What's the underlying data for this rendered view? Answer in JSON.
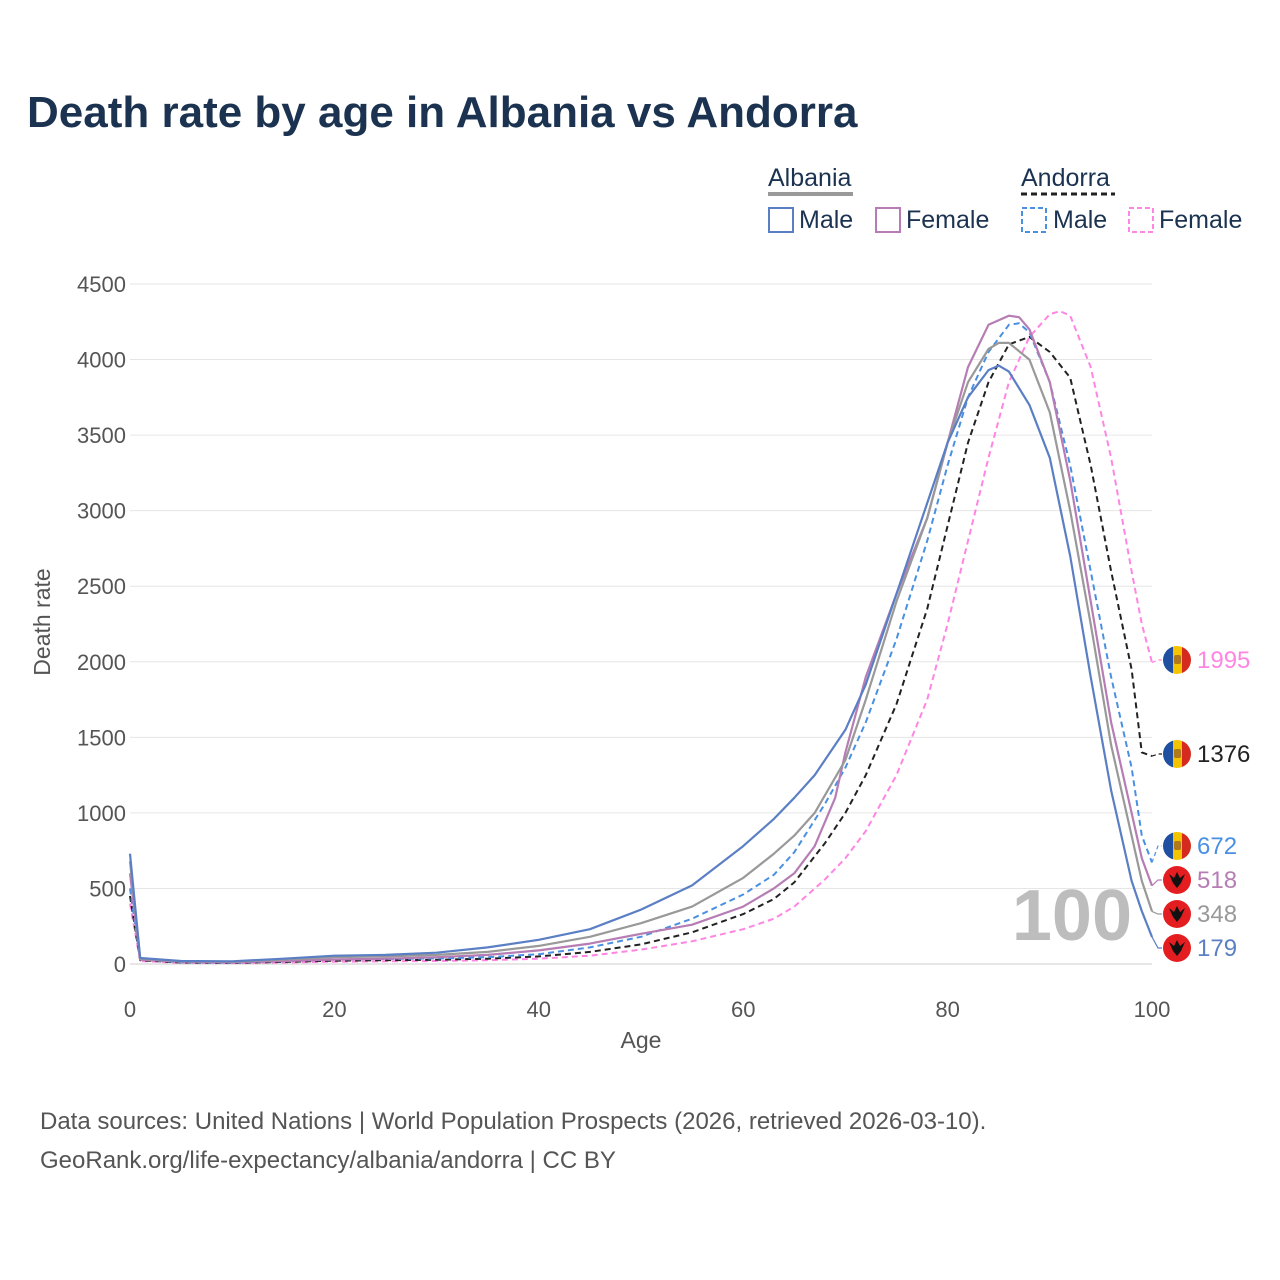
{
  "title": "Death rate by age in Albania vs Andorra",
  "source_line1": "Data sources: United Nations | World Population Prospects (2026, retrieved 2026-03-10).",
  "source_line2": "GeoRank.org/life-expectancy/albania/andorra | CC BY",
  "watermark": "100",
  "colors": {
    "albania_male": "#5b7fc4",
    "albania_female": "#b67db5",
    "albania_total": "#999999",
    "andorra_male": "#4a90e2",
    "andorra_female": "#ff85e3",
    "andorra_total": "#222222",
    "grid": "#e6e6e6",
    "axis_text": "#555555"
  },
  "legend": {
    "groups": [
      {
        "name": "Albania",
        "style": "solid",
        "items": [
          "Male",
          "Female"
        ]
      },
      {
        "name": "Andorra",
        "style": "dashed",
        "items": [
          "Male",
          "Female"
        ]
      }
    ]
  },
  "chart_data": {
    "type": "line",
    "title": "Death rate by age in Albania vs Andorra",
    "xlabel": "Age",
    "ylabel": "Death rate",
    "xlim": [
      0,
      100
    ],
    "ylim": [
      0,
      4500
    ],
    "x_ticks": [
      0,
      20,
      40,
      60,
      80,
      100
    ],
    "y_ticks": [
      0,
      500,
      1000,
      1500,
      2000,
      2500,
      3000,
      3500,
      4000,
      4500
    ],
    "grid": true,
    "series": [
      {
        "name": "Andorra Female",
        "key": "andorra_female",
        "country": "Andorra",
        "dash": true,
        "end_value": "1995",
        "points": [
          [
            0,
            400
          ],
          [
            1,
            20
          ],
          [
            5,
            8
          ],
          [
            10,
            6
          ],
          [
            15,
            10
          ],
          [
            20,
            15
          ],
          [
            25,
            18
          ],
          [
            30,
            20
          ],
          [
            35,
            25
          ],
          [
            40,
            35
          ],
          [
            45,
            55
          ],
          [
            50,
            95
          ],
          [
            55,
            150
          ],
          [
            60,
            230
          ],
          [
            63,
            300
          ],
          [
            65,
            380
          ],
          [
            68,
            560
          ],
          [
            70,
            700
          ],
          [
            72,
            880
          ],
          [
            75,
            1250
          ],
          [
            78,
            1750
          ],
          [
            80,
            2250
          ],
          [
            82,
            2800
          ],
          [
            84,
            3350
          ],
          [
            86,
            3850
          ],
          [
            88,
            4150
          ],
          [
            90,
            4300
          ],
          [
            91,
            4320
          ],
          [
            92,
            4290
          ],
          [
            94,
            3950
          ],
          [
            96,
            3350
          ],
          [
            98,
            2600
          ],
          [
            99,
            2250
          ],
          [
            100,
            1995
          ]
        ]
      },
      {
        "name": "Andorra Total",
        "key": "andorra_total",
        "country": "Andorra",
        "dash": true,
        "end_value": "1376",
        "points": [
          [
            0,
            450
          ],
          [
            1,
            25
          ],
          [
            5,
            10
          ],
          [
            10,
            8
          ],
          [
            15,
            14
          ],
          [
            20,
            22
          ],
          [
            25,
            25
          ],
          [
            30,
            28
          ],
          [
            35,
            35
          ],
          [
            40,
            50
          ],
          [
            45,
            80
          ],
          [
            50,
            130
          ],
          [
            55,
            210
          ],
          [
            60,
            330
          ],
          [
            63,
            430
          ],
          [
            65,
            540
          ],
          [
            68,
            800
          ],
          [
            70,
            1000
          ],
          [
            72,
            1250
          ],
          [
            75,
            1720
          ],
          [
            78,
            2350
          ],
          [
            80,
            2900
          ],
          [
            82,
            3450
          ],
          [
            84,
            3850
          ],
          [
            86,
            4100
          ],
          [
            88,
            4150
          ],
          [
            90,
            4050
          ],
          [
            92,
            3880
          ],
          [
            94,
            3300
          ],
          [
            96,
            2600
          ],
          [
            98,
            1950
          ],
          [
            99,
            1400
          ],
          [
            100,
            1376
          ]
        ]
      },
      {
        "name": "Andorra Male",
        "key": "andorra_male",
        "country": "Andorra",
        "dash": true,
        "end_value": "672",
        "points": [
          [
            0,
            500
          ],
          [
            1,
            30
          ],
          [
            5,
            12
          ],
          [
            10,
            10
          ],
          [
            15,
            18
          ],
          [
            20,
            30
          ],
          [
            25,
            33
          ],
          [
            30,
            37
          ],
          [
            35,
            45
          ],
          [
            40,
            65
          ],
          [
            45,
            110
          ],
          [
            50,
            180
          ],
          [
            55,
            300
          ],
          [
            60,
            460
          ],
          [
            63,
            590
          ],
          [
            65,
            740
          ],
          [
            68,
            1060
          ],
          [
            70,
            1300
          ],
          [
            72,
            1600
          ],
          [
            75,
            2150
          ],
          [
            78,
            2800
          ],
          [
            80,
            3300
          ],
          [
            82,
            3750
          ],
          [
            84,
            4050
          ],
          [
            86,
            4230
          ],
          [
            87,
            4240
          ],
          [
            88,
            4180
          ],
          [
            90,
            3850
          ],
          [
            92,
            3300
          ],
          [
            94,
            2600
          ],
          [
            96,
            1900
          ],
          [
            98,
            1300
          ],
          [
            99,
            850
          ],
          [
            100,
            672
          ]
        ]
      },
      {
        "name": "Albania Female",
        "key": "albania_female",
        "country": "Albania",
        "dash": false,
        "end_value": "518",
        "points": [
          [
            0,
            600
          ],
          [
            1,
            30
          ],
          [
            5,
            15
          ],
          [
            10,
            12
          ],
          [
            15,
            20
          ],
          [
            20,
            30
          ],
          [
            25,
            35
          ],
          [
            30,
            45
          ],
          [
            35,
            60
          ],
          [
            40,
            90
          ],
          [
            45,
            135
          ],
          [
            50,
            200
          ],
          [
            55,
            260
          ],
          [
            60,
            380
          ],
          [
            63,
            500
          ],
          [
            65,
            600
          ],
          [
            67,
            780
          ],
          [
            69,
            1100
          ],
          [
            70,
            1400
          ],
          [
            72,
            1900
          ],
          [
            75,
            2450
          ],
          [
            78,
            2950
          ],
          [
            80,
            3450
          ],
          [
            82,
            3950
          ],
          [
            84,
            4230
          ],
          [
            86,
            4290
          ],
          [
            87,
            4280
          ],
          [
            88,
            4200
          ],
          [
            90,
            3850
          ],
          [
            92,
            3200
          ],
          [
            94,
            2400
          ],
          [
            96,
            1600
          ],
          [
            98,
            1000
          ],
          [
            99,
            700
          ],
          [
            100,
            518
          ]
        ]
      },
      {
        "name": "Albania Total",
        "key": "albania_total",
        "country": "Albania",
        "dash": false,
        "end_value": "348",
        "points": [
          [
            0,
            680
          ],
          [
            1,
            35
          ],
          [
            5,
            18
          ],
          [
            10,
            15
          ],
          [
            15,
            30
          ],
          [
            20,
            45
          ],
          [
            25,
            50
          ],
          [
            30,
            60
          ],
          [
            35,
            80
          ],
          [
            40,
            120
          ],
          [
            45,
            180
          ],
          [
            50,
            270
          ],
          [
            55,
            380
          ],
          [
            60,
            570
          ],
          [
            63,
            730
          ],
          [
            65,
            850
          ],
          [
            67,
            1000
          ],
          [
            70,
            1350
          ],
          [
            72,
            1750
          ],
          [
            75,
            2400
          ],
          [
            78,
            2950
          ],
          [
            80,
            3450
          ],
          [
            82,
            3850
          ],
          [
            84,
            4070
          ],
          [
            85,
            4110
          ],
          [
            86,
            4110
          ],
          [
            88,
            4000
          ],
          [
            90,
            3650
          ],
          [
            92,
            3000
          ],
          [
            94,
            2250
          ],
          [
            96,
            1450
          ],
          [
            98,
            850
          ],
          [
            99,
            550
          ],
          [
            100,
            348
          ]
        ]
      },
      {
        "name": "Albania Male",
        "key": "albania_male",
        "country": "Albania",
        "dash": false,
        "end_value": "179",
        "points": [
          [
            0,
            730
          ],
          [
            1,
            40
          ],
          [
            5,
            20
          ],
          [
            10,
            18
          ],
          [
            15,
            35
          ],
          [
            20,
            55
          ],
          [
            25,
            60
          ],
          [
            30,
            75
          ],
          [
            35,
            110
          ],
          [
            40,
            160
          ],
          [
            45,
            230
          ],
          [
            50,
            360
          ],
          [
            55,
            520
          ],
          [
            60,
            780
          ],
          [
            63,
            960
          ],
          [
            65,
            1100
          ],
          [
            67,
            1250
          ],
          [
            70,
            1550
          ],
          [
            72,
            1850
          ],
          [
            75,
            2450
          ],
          [
            78,
            3050
          ],
          [
            80,
            3450
          ],
          [
            82,
            3750
          ],
          [
            84,
            3930
          ],
          [
            85,
            3960
          ],
          [
            86,
            3920
          ],
          [
            88,
            3700
          ],
          [
            90,
            3350
          ],
          [
            92,
            2700
          ],
          [
            94,
            1900
          ],
          [
            96,
            1150
          ],
          [
            98,
            550
          ],
          [
            99,
            350
          ],
          [
            100,
            179
          ]
        ]
      }
    ]
  }
}
